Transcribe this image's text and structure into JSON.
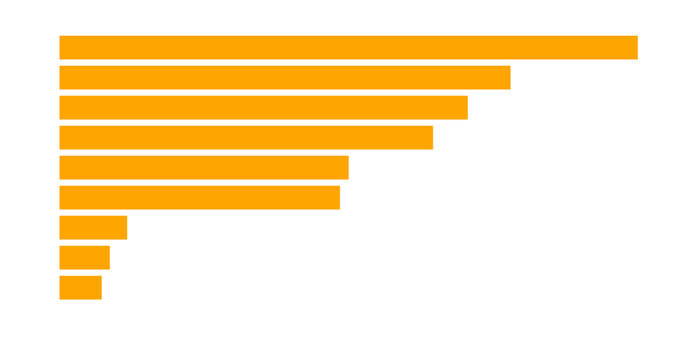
{
  "chart_data": {
    "type": "barh",
    "values": [
      100,
      78,
      70.6,
      64.6,
      50,
      48.5,
      11.7,
      8.7,
      7.3
    ],
    "color": "#ffa500"
  }
}
